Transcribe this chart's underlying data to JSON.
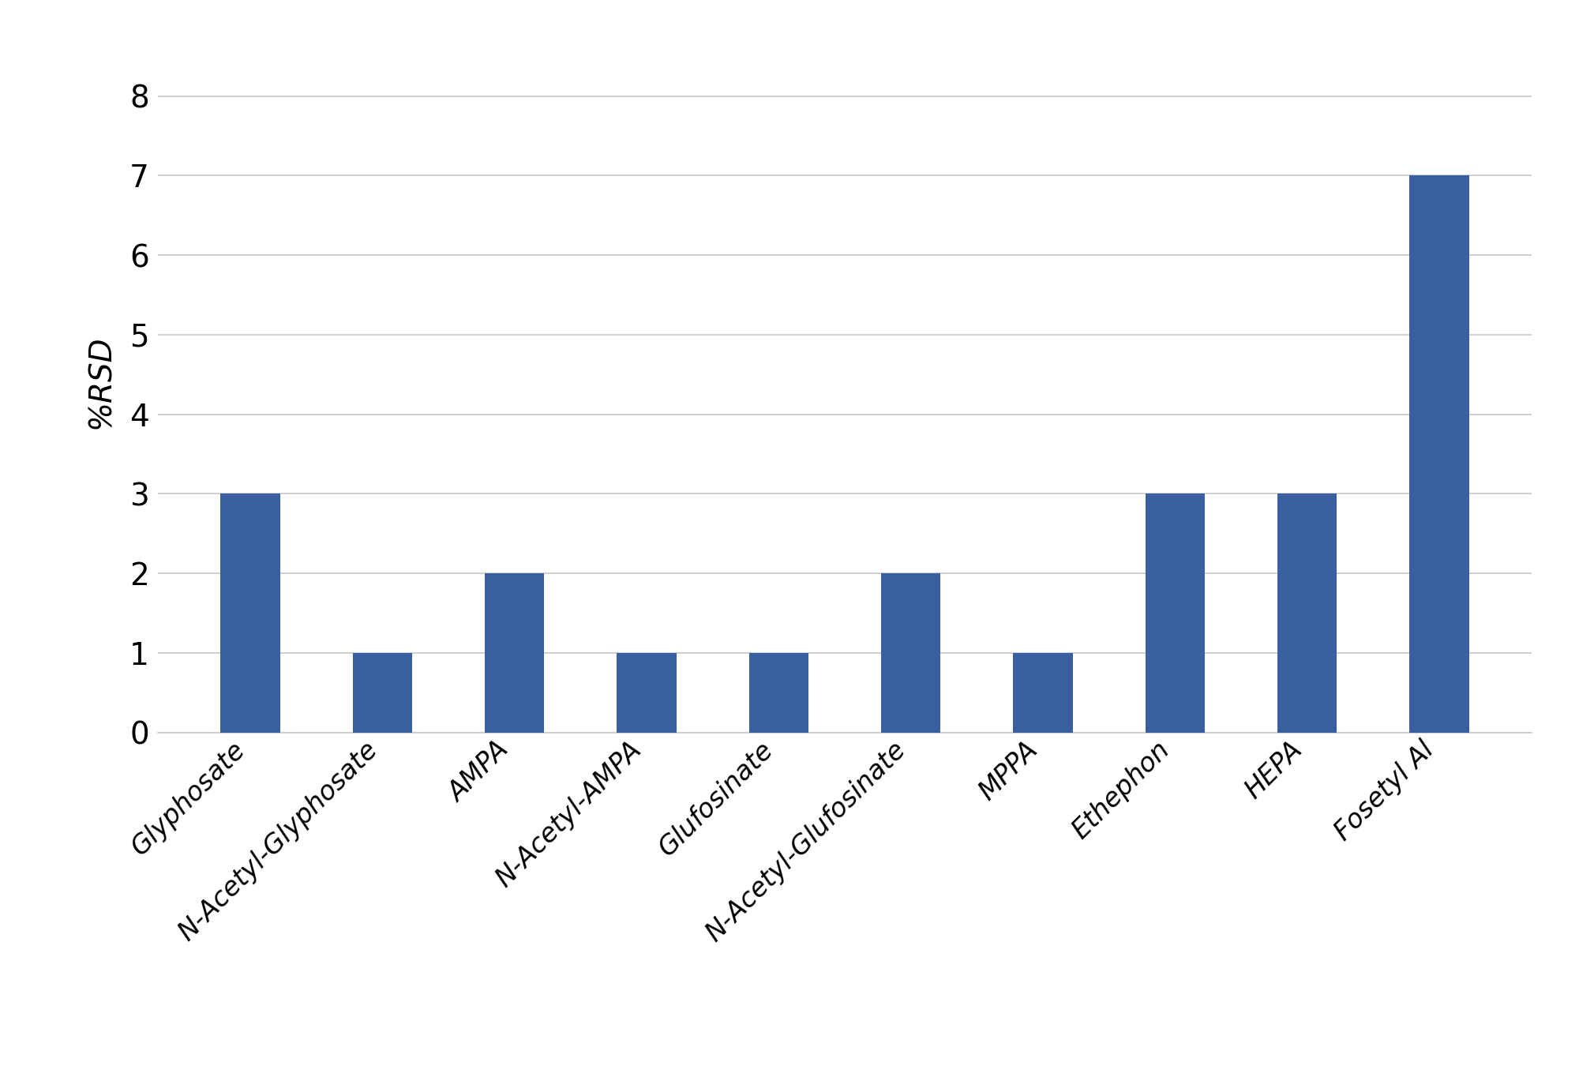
{
  "categories": [
    "Glyphosate",
    "N-Acetyl-Glyphosate",
    "AMPA",
    "N-Acetyl-AMPA",
    "Glufosinate",
    "N-Acetyl-Glufosinate",
    "MPPA",
    "Ethephon",
    "HEPA",
    "Fosetyl Al"
  ],
  "values": [
    3,
    1,
    2,
    1,
    1,
    2,
    1,
    3,
    3,
    7
  ],
  "bar_color": "#3A5FA0",
  "ylabel": "%RSD",
  "ylim": [
    0,
    8.8
  ],
  "yticks": [
    0,
    1,
    2,
    3,
    4,
    5,
    6,
    7,
    8
  ],
  "background_color": "#ffffff",
  "grid_color": "#c8c8c8",
  "bar_width": 0.45
}
